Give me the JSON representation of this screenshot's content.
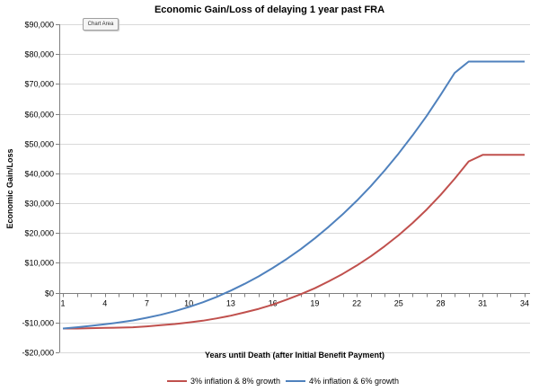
{
  "chart_area_tooltip": "Chart Area",
  "chart_data": {
    "type": "line",
    "title": "Economic Gain/Loss of delaying 1 year past FRA",
    "xlabel": "Years until Death (after Initial Benefit Payment)",
    "ylabel": "Economic Gain/Loss",
    "x": [
      1,
      2,
      3,
      4,
      5,
      6,
      7,
      8,
      9,
      10,
      11,
      12,
      13,
      14,
      15,
      16,
      17,
      18,
      19,
      20,
      21,
      22,
      23,
      24,
      25,
      26,
      27,
      28,
      29,
      30,
      31,
      32,
      33,
      34
    ],
    "x_tick_labels": [
      "1",
      "4",
      "7",
      "10",
      "13",
      "16",
      "19",
      "22",
      "25",
      "28",
      "31",
      "34"
    ],
    "ylim": [
      -20000,
      90000
    ],
    "y_ticks": [
      -20000,
      -10000,
      0,
      10000,
      20000,
      30000,
      40000,
      50000,
      60000,
      70000,
      80000,
      90000
    ],
    "y_tick_labels": [
      "-$20,000",
      "-$10,000",
      "$0",
      "$10,000",
      "$20,000",
      "$30,000",
      "$40,000",
      "$50,000",
      "$60,000",
      "$70,000",
      "$80,000",
      "$90,000"
    ],
    "grid": "horizontal",
    "legend_position": "bottom",
    "series": [
      {
        "name": "3% inflation & 8% growth",
        "color": "#c0504d",
        "values": [
          -12000,
          -12000,
          -11900,
          -11800,
          -11700,
          -11600,
          -11300,
          -10900,
          -10500,
          -10000,
          -9400,
          -8600,
          -7700,
          -6600,
          -5400,
          -4000,
          -2300,
          -500,
          1500,
          3800,
          6300,
          9100,
          12200,
          15600,
          19300,
          23400,
          27900,
          32800,
          38200,
          44000,
          46200,
          46200,
          46200,
          46200
        ]
      },
      {
        "name": "4% inflation & 6% growth",
        "color": "#4f81bd",
        "values": [
          -12000,
          -11600,
          -11100,
          -10600,
          -10000,
          -9300,
          -8400,
          -7400,
          -6200,
          -4800,
          -3200,
          -1400,
          700,
          3000,
          5500,
          8300,
          11300,
          14600,
          18200,
          22100,
          26300,
          30800,
          35700,
          41000,
          46700,
          52800,
          59300,
          66300,
          73700,
          77500,
          77500,
          77500,
          77500,
          77500
        ]
      }
    ]
  }
}
